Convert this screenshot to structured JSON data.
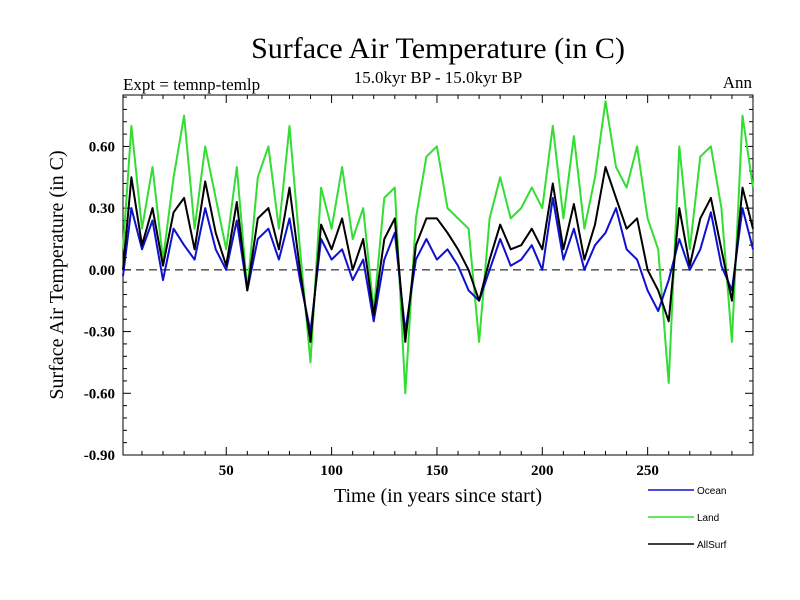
{
  "chart_data": {
    "type": "line",
    "title": "Surface Air Temperature (in C)",
    "subtitle": "15.0kyr BP - 15.0kyr BP",
    "left_label": "Expt = temnp-temlp",
    "right_label": "Ann",
    "xlabel": "Time (in years since start)",
    "ylabel": "Surface Air Temperature (in C)",
    "xlim": [
      1,
      300
    ],
    "ylim": [
      -0.9,
      0.85
    ],
    "x_ticks": [
      50,
      100,
      150,
      200,
      250
    ],
    "x_tick_labels": [
      "50",
      "100",
      "150",
      "200",
      "250"
    ],
    "y_ticks": [
      -0.9,
      -0.6,
      -0.3,
      0.0,
      0.3,
      0.6
    ],
    "y_tick_labels": [
      "-0.90",
      "-0.60",
      "-0.30",
      "0.00",
      "0.30",
      "0.60"
    ],
    "reference_line": 0.0,
    "x": [
      1,
      5,
      10,
      15,
      20,
      25,
      30,
      35,
      40,
      45,
      50,
      55,
      60,
      65,
      70,
      75,
      80,
      85,
      90,
      95,
      100,
      105,
      110,
      115,
      120,
      125,
      130,
      135,
      140,
      145,
      150,
      155,
      160,
      165,
      170,
      175,
      180,
      185,
      190,
      195,
      200,
      205,
      210,
      215,
      220,
      225,
      230,
      235,
      240,
      245,
      250,
      255,
      260,
      265,
      270,
      275,
      280,
      285,
      290,
      295,
      300
    ],
    "series": [
      {
        "name": "Ocean",
        "color": "#1010d0",
        "values": [
          -0.03,
          0.3,
          0.1,
          0.24,
          -0.05,
          0.2,
          0.12,
          0.05,
          0.3,
          0.1,
          0.0,
          0.24,
          -0.1,
          0.15,
          0.2,
          0.05,
          0.25,
          -0.05,
          -0.3,
          0.15,
          0.05,
          0.1,
          -0.05,
          0.05,
          -0.25,
          0.05,
          0.18,
          -0.3,
          0.05,
          0.15,
          0.05,
          0.1,
          0.02,
          -0.1,
          -0.15,
          0.0,
          0.15,
          0.02,
          0.05,
          0.12,
          0.0,
          0.35,
          0.05,
          0.2,
          0.0,
          0.12,
          0.18,
          0.3,
          0.1,
          0.05,
          -0.1,
          -0.2,
          -0.05,
          0.15,
          0.0,
          0.1,
          0.28,
          0.02,
          -0.1,
          0.3,
          0.1
        ]
      },
      {
        "name": "Land",
        "color": "#33dd33",
        "values": [
          0.1,
          0.7,
          0.2,
          0.5,
          0.05,
          0.45,
          0.75,
          0.2,
          0.6,
          0.35,
          0.1,
          0.5,
          -0.1,
          0.45,
          0.6,
          0.2,
          0.7,
          0.1,
          -0.45,
          0.4,
          0.2,
          0.5,
          0.15,
          0.3,
          -0.2,
          0.35,
          0.4,
          -0.6,
          0.25,
          0.55,
          0.6,
          0.3,
          0.25,
          0.2,
          -0.35,
          0.25,
          0.45,
          0.25,
          0.3,
          0.4,
          0.3,
          0.7,
          0.25,
          0.65,
          0.2,
          0.45,
          0.82,
          0.5,
          0.4,
          0.6,
          0.25,
          0.1,
          -0.55,
          0.6,
          0.1,
          0.55,
          0.6,
          0.3,
          -0.35,
          0.75,
          0.4
        ]
      },
      {
        "name": "AllSurf",
        "color": "#000000",
        "values": [
          0.0,
          0.45,
          0.12,
          0.3,
          0.02,
          0.28,
          0.35,
          0.1,
          0.43,
          0.18,
          0.02,
          0.33,
          -0.1,
          0.25,
          0.3,
          0.1,
          0.4,
          0.0,
          -0.35,
          0.22,
          0.1,
          0.25,
          0.0,
          0.15,
          -0.22,
          0.15,
          0.25,
          -0.35,
          0.12,
          0.25,
          0.25,
          0.18,
          0.1,
          0.0,
          -0.15,
          0.05,
          0.22,
          0.1,
          0.12,
          0.2,
          0.1,
          0.42,
          0.1,
          0.32,
          0.05,
          0.22,
          0.5,
          0.35,
          0.2,
          0.25,
          0.0,
          -0.1,
          -0.25,
          0.3,
          0.02,
          0.25,
          0.35,
          0.1,
          -0.15,
          0.4,
          0.2
        ]
      }
    ],
    "legend_position": "bottom-right"
  }
}
